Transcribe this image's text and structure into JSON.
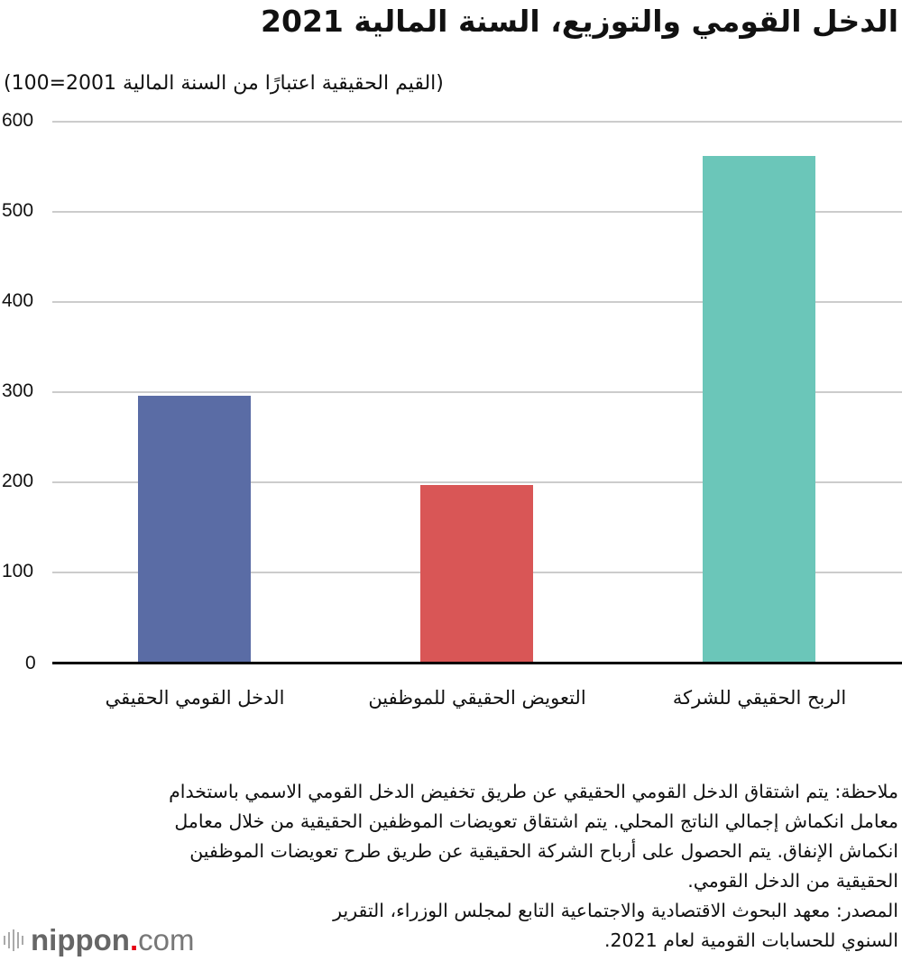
{
  "chart_data": {
    "type": "bar",
    "title": "الدخل القومي والتوزيع، السنة المالية 2021",
    "subtitle": "(القيم الحقيقية اعتبارًا من السنة المالية 2001=100)",
    "xlabel": "",
    "ylabel": "",
    "categories": [
      "الدخل القومي الحقيقي",
      "التعويض الحقيقي للموظفين",
      "الربح الحقيقي للشركة"
    ],
    "values": [
      296,
      197,
      562
    ],
    "colors": [
      "#5a6ca5",
      "#d95656",
      "#6bc6b9"
    ],
    "ylim": [
      0,
      600
    ],
    "yticks": [
      "0",
      "100",
      "200",
      "300",
      "400",
      "500",
      "600"
    ],
    "grid": true,
    "legend": "none"
  },
  "note": {
    "lines": [
      "ملاحظة: يتم اشتقاق الدخل القومي الحقيقي عن طريق تخفيض الدخل القومي الاسمي باستخدام",
      "معامل انكماش إجمالي الناتج المحلي. يتم اشتقاق تعويضات الموظفين الحقيقية من خلال معامل",
      "انكماش الإنفاق. يتم الحصول على أرباح الشركة الحقيقية عن طريق طرح تعويضات الموظفين",
      "الحقيقية من الدخل القومي."
    ],
    "source_lines": [
      "المصدر: معهد البحوث الاقتصادية والاجتماعية التابع لمجلس الوزراء، التقرير",
      "السنوي للحسابات القومية لعام 2021."
    ]
  },
  "logo": {
    "name": "nippon",
    "dot": ".",
    "suffix": "com"
  }
}
